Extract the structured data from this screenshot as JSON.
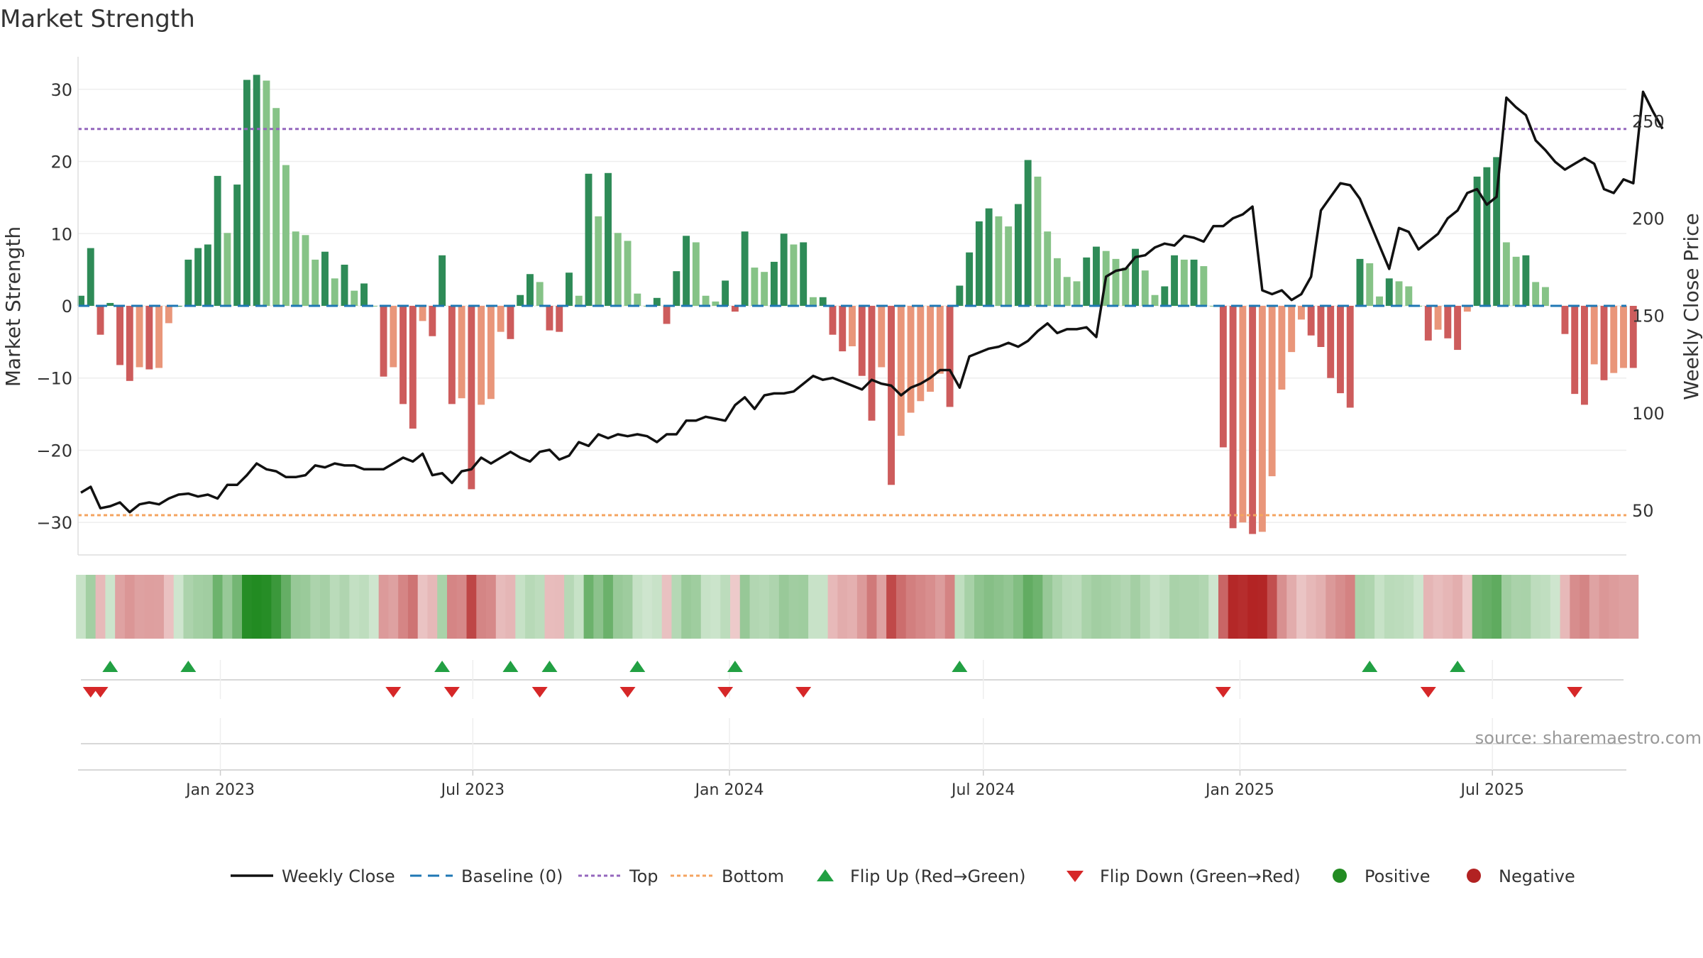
{
  "chart_data": [
    {
      "type": "bar",
      "title": "Market Strength",
      "ylabel": "Market Strength",
      "y2label": "Weekly Close Price",
      "ylim": [
        -34.5,
        34.5
      ],
      "y2lim": [
        27,
        283
      ],
      "x_start": "2022-09-23",
      "x_step_days": 7,
      "x_end": "2025-10-03",
      "x_ticks": [
        "Jan 2023",
        "Jul 2023",
        "Jan 2024",
        "Jul 2024",
        "Jan 2025",
        "Jul 2025"
      ],
      "x_tick_dates": [
        "2023-01-01",
        "2023-07-01",
        "2024-01-01",
        "2024-07-01",
        "2025-01-01",
        "2025-07-01"
      ],
      "y_ticks": [
        -30,
        -20,
        -10,
        0,
        10,
        20,
        30
      ],
      "y2_ticks": [
        50,
        100,
        150,
        200,
        250
      ],
      "top_line": 24.5,
      "bottom_line": -29,
      "grid": true,
      "series": [
        {
          "name": "Market Strength",
          "values": [
            1.4,
            8,
            -4,
            0.4,
            -8.2,
            -10.4,
            -8.5,
            -8.8,
            -8.6,
            -2.4,
            0,
            6.4,
            8,
            8.5,
            18,
            10.1,
            16.8,
            31.3,
            32,
            31.2,
            27.4,
            19.5,
            10.3,
            9.8,
            6.4,
            7.5,
            3.8,
            5.7,
            2.1,
            3.1,
            0,
            -9.8,
            -8.5,
            -13.6,
            -17,
            -2.1,
            -4.2,
            7,
            -13.6,
            -12.8,
            -25.4,
            -13.7,
            -12.9,
            -3.6,
            -4.6,
            1.5,
            4.4,
            3.3,
            -3.4,
            -3.6,
            4.6,
            1.4,
            18.3,
            12.4,
            18.4,
            10.1,
            9,
            1.7,
            0,
            1.1,
            -2.5,
            4.8,
            9.7,
            8.8,
            1.4,
            0.6,
            3.5,
            -0.8,
            10.3,
            5.3,
            4.7,
            6.1,
            10,
            8.5,
            8.8,
            1.2,
            1.2,
            -4,
            -6.3,
            -5.6,
            -9.7,
            -15.9,
            -8.5,
            -24.8,
            -18,
            -14.8,
            -13.2,
            -11.9,
            -9.4,
            -14,
            2.8,
            7.4,
            11.7,
            13.5,
            12.4,
            11,
            14.1,
            20.2,
            17.9,
            10.3,
            6.6,
            4,
            3.4,
            6.7,
            8.2,
            7.6,
            6.5,
            5.3,
            7.9,
            4.9,
            1.5,
            2.7,
            7,
            6.4,
            6.4,
            5.5,
            0,
            -19.6,
            -30.8,
            -30,
            -31.6,
            -31.3,
            -23.6,
            -11.6,
            -6.4,
            -1.9,
            -4.1,
            -5.7,
            -10,
            -12.1,
            -14.1,
            6.5,
            5.9,
            1.3,
            3.8,
            3.4,
            2.7,
            0,
            -4.8,
            -3.3,
            -4.5,
            -6.1,
            -0.8,
            17.9,
            19.2,
            20.6,
            8.8,
            6.8,
            7,
            3.3,
            2.6,
            0,
            -3.9,
            -12.2,
            -13.7,
            -8.1,
            -10.3,
            -9.3,
            -8.6,
            -8.6
          ]
        },
        {
          "name": "Weekly Close",
          "values": [
            59,
            62,
            51,
            52,
            54,
            49,
            53,
            54,
            53,
            56,
            58,
            58.5,
            57,
            58,
            56,
            63,
            63,
            68,
            74,
            71,
            70,
            67,
            67,
            68,
            73,
            72,
            74,
            73,
            73,
            71,
            71,
            71,
            74,
            77,
            75,
            79,
            68,
            69,
            64,
            70,
            71,
            77,
            74,
            77,
            80,
            77,
            75,
            80,
            81,
            76,
            78,
            85,
            83,
            89,
            87,
            89,
            88,
            89,
            88,
            85,
            89,
            89,
            96,
            96,
            98,
            97,
            96,
            104,
            108,
            102,
            109,
            110,
            110,
            111,
            115,
            119,
            117,
            118,
            116,
            114,
            112,
            117,
            115,
            114,
            109,
            113,
            115,
            118,
            122,
            122,
            113,
            129,
            131,
            133,
            134,
            136,
            134,
            137,
            142,
            146,
            141,
            143,
            143,
            144,
            139,
            170,
            173,
            174,
            180,
            181,
            185,
            187,
            186,
            191,
            190,
            188,
            196,
            196,
            200,
            202,
            206,
            163,
            161,
            163,
            158,
            161,
            170,
            204,
            211,
            218,
            217,
            210,
            198,
            186,
            174,
            195,
            193,
            184,
            188,
            192,
            200,
            204,
            213,
            215,
            207,
            211,
            262,
            257,
            253,
            240,
            235,
            229,
            225,
            228,
            231,
            228,
            215,
            213,
            220,
            218,
            265,
            255,
            246
          ]
        }
      ],
      "flips_up_dates": [
        "2022-10-14",
        "2022-12-09",
        "2023-06-09",
        "2023-07-28",
        "2023-08-25",
        "2023-10-27",
        "2024-01-05",
        "2024-06-14",
        "2025-04-04",
        "2025-06-06"
      ],
      "flips_down_dates": [
        "2022-09-30",
        "2022-10-07",
        "2023-05-05",
        "2023-06-16",
        "2023-08-18",
        "2023-10-20",
        "2023-12-29",
        "2024-02-23",
        "2024-12-20",
        "2025-05-16",
        "2025-08-29"
      ],
      "colors": {
        "pos_strong": "#2e8b57",
        "pos_weak": "#86c387",
        "neg_strong": "#cd5c5c",
        "neg_weak": "#e9967a",
        "close_line": "#111111",
        "baseline": "#1f77b4",
        "top": "#9467bd",
        "bottom": "#f4a460",
        "flip_up": "#22a043",
        "flip_down": "#d62728",
        "positive": "#228b22",
        "negative": "#b22222"
      }
    }
  ],
  "source_text": "source: sharemaestro.com",
  "legend": {
    "items": [
      {
        "label": "Weekly Close",
        "icon": "solid-line-icon",
        "color": "#111111"
      },
      {
        "label": "Baseline (0)",
        "icon": "dashed-line-icon",
        "color": "#1f77b4"
      },
      {
        "label": "Top",
        "icon": "dotted-line-icon",
        "color": "#9467bd"
      },
      {
        "label": "Bottom",
        "icon": "dotted-line-icon",
        "color": "#f4a460"
      },
      {
        "label": "Flip Up (Red→Green)",
        "icon": "triangle-up-icon",
        "color": "#22a043"
      },
      {
        "label": "Flip Down (Green→Red)",
        "icon": "triangle-down-icon",
        "color": "#d62728"
      },
      {
        "label": "Positive",
        "icon": "circle-icon",
        "color": "#228b22"
      },
      {
        "label": "Negative",
        "icon": "circle-icon",
        "color": "#b22222"
      }
    ]
  }
}
